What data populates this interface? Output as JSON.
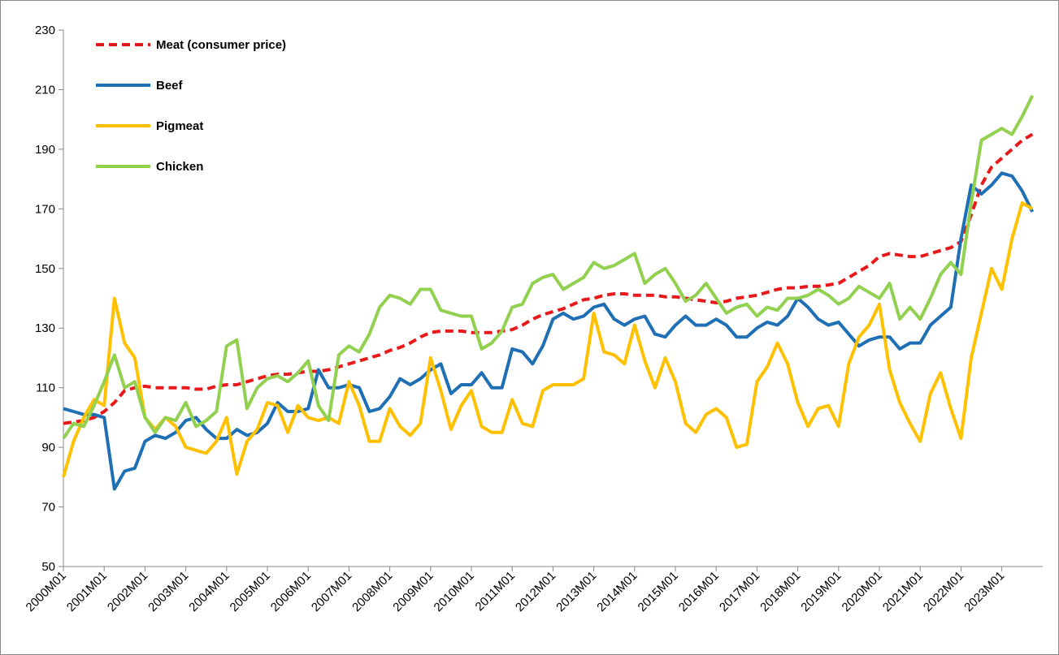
{
  "chart_data": {
    "type": "line",
    "categories": [
      "2000M01",
      null,
      null,
      null,
      "2001M01",
      null,
      null,
      null,
      "2002M01",
      null,
      null,
      null,
      "2003M01",
      null,
      null,
      null,
      "2004M01",
      null,
      null,
      null,
      "2005M01",
      null,
      null,
      null,
      "2006M01",
      null,
      null,
      null,
      "2007M01",
      null,
      null,
      null,
      "2008M01",
      null,
      null,
      null,
      "2009M01",
      null,
      null,
      null,
      "2010M01",
      null,
      null,
      null,
      "2011M01",
      null,
      null,
      null,
      "2012M01",
      null,
      null,
      null,
      "2013M01",
      null,
      null,
      null,
      "2014M01",
      null,
      null,
      null,
      "2015M01",
      null,
      null,
      null,
      "2016M01",
      null,
      null,
      null,
      "2017M01",
      null,
      null,
      null,
      "2018M01",
      null,
      null,
      null,
      "2019M01",
      null,
      null,
      null,
      "2020M01",
      null,
      null,
      null,
      "2021M01",
      null,
      null,
      null,
      "2022M01",
      null,
      null,
      null,
      "2023M01",
      null,
      null,
      null
    ],
    "ylim": [
      50,
      230
    ],
    "yticks": [
      50,
      70,
      90,
      110,
      130,
      150,
      170,
      190,
      210,
      230
    ],
    "grid": false,
    "legend": "upper-left",
    "series": [
      {
        "name": "Meat (consumer price)",
        "color": "#e8191a",
        "dashed": true,
        "values": [
          98,
          98.5,
          99,
          100,
          102,
          105,
          109,
          110,
          110.5,
          110,
          110,
          110,
          110,
          109.5,
          109.5,
          110.5,
          111,
          111,
          112,
          113,
          114,
          114.5,
          114.5,
          115,
          115.5,
          115.5,
          116,
          117,
          118,
          119,
          120,
          121,
          122.5,
          123.5,
          125,
          127,
          128.5,
          129,
          129,
          129,
          128.5,
          128.5,
          128.5,
          129,
          129.5,
          131,
          133,
          134.5,
          135.5,
          136.5,
          138,
          139.5,
          140,
          141,
          141.5,
          141.5,
          141,
          141,
          141,
          140.5,
          140.5,
          140,
          139.5,
          139,
          138.5,
          139,
          140,
          140.5,
          141,
          142,
          143,
          143.5,
          143.5,
          144,
          144,
          144.5,
          145,
          147,
          149,
          151,
          154,
          155,
          154.5,
          154,
          154,
          155,
          156,
          157,
          159,
          168,
          178,
          184,
          187,
          190,
          193,
          195
        ]
      },
      {
        "name": "Beef",
        "color": "#1f6fb5",
        "dashed": false,
        "values": [
          103,
          102,
          101,
          101,
          100,
          76,
          82,
          83,
          92,
          94,
          93,
          95,
          99,
          100,
          96,
          93,
          93,
          96,
          94,
          95,
          98,
          105,
          102,
          102,
          103,
          116,
          110,
          110,
          111,
          110,
          102,
          103,
          107,
          113,
          111,
          113,
          116,
          118,
          108,
          111,
          111,
          115,
          110,
          110,
          123,
          122,
          118,
          124,
          133,
          135,
          133,
          134,
          137,
          138,
          133,
          131,
          133,
          134,
          128,
          127,
          131,
          134,
          131,
          131,
          133,
          131,
          127,
          127,
          130,
          132,
          131,
          134,
          140,
          137,
          133,
          131,
          132,
          128,
          124,
          126,
          127,
          127,
          123,
          125,
          125,
          131,
          134,
          137,
          160,
          178,
          175,
          178,
          182,
          181,
          176,
          169
        ]
      },
      {
        "name": "Pigmeat",
        "color": "#ffc000",
        "dashed": false,
        "values": [
          80,
          92,
          100,
          106,
          104,
          140,
          125,
          120,
          100,
          96,
          100,
          97,
          90,
          89,
          88,
          92,
          100,
          81,
          92,
          96,
          105,
          104,
          95,
          104,
          100,
          99,
          100,
          98,
          112,
          104,
          92,
          92,
          103,
          97,
          94,
          98,
          120,
          109,
          96,
          104,
          109,
          97,
          95,
          95,
          106,
          98,
          97,
          109,
          111,
          111,
          111,
          113,
          135,
          122,
          121,
          118,
          131,
          119,
          110,
          120,
          112,
          98,
          95,
          101,
          103,
          100,
          90,
          91,
          112,
          117,
          125,
          118,
          105,
          97,
          103,
          104,
          97,
          118,
          127,
          131,
          138,
          116,
          105,
          98,
          92,
          108,
          115,
          103,
          93,
          120,
          135,
          150,
          143,
          160,
          172,
          170
        ]
      },
      {
        "name": "Chicken",
        "color": "#92d050",
        "dashed": false,
        "values": [
          93,
          98,
          97,
          104,
          112,
          121,
          110,
          112,
          100,
          95,
          100,
          99,
          105,
          97,
          99,
          102,
          124,
          126,
          103,
          110,
          113,
          114,
          112,
          115,
          119,
          104,
          99,
          121,
          124,
          122,
          128,
          137,
          141,
          140,
          138,
          143,
          143,
          136,
          135,
          134,
          134,
          123,
          125,
          129,
          137,
          138,
          145,
          147,
          148,
          143,
          145,
          147,
          152,
          150,
          151,
          153,
          155,
          145,
          148,
          150,
          145,
          139,
          141,
          145,
          140,
          135,
          137,
          138,
          134,
          137,
          136,
          140,
          140,
          141,
          143,
          141,
          138,
          140,
          144,
          142,
          140,
          145,
          133,
          137,
          133,
          140,
          148,
          152,
          148,
          172,
          193,
          195,
          197,
          195,
          201,
          208
        ]
      }
    ]
  }
}
